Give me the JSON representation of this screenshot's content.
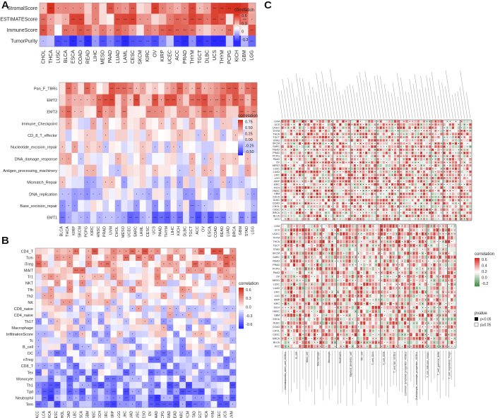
{
  "panel_labels": [
    "A",
    "B",
    "C"
  ],
  "colors": {
    "positive": "#d7301f",
    "neutral": "#ffffff",
    "negative": "#2b2bff",
    "c_positive": "#d73027",
    "c_negative": "#4a8f4a",
    "sig_fill": "#111111",
    "nonsig_fill": "#ffffff"
  },
  "chart_data": [
    {
      "id": "A-top",
      "type": "heatmap",
      "title": "",
      "rows": [
        "StromalScore",
        "ESTIMATEScore",
        "ImmuneScore",
        "TumorPurity"
      ],
      "columns": [
        "CHOL",
        "THCA",
        "LUSC",
        "BLCA",
        "ESCA",
        "COAD",
        "READ",
        "LIHC",
        "MESO",
        "PAAD",
        "LUAD",
        "LAML",
        "CESC",
        "SKCM",
        "KIRC",
        "OV",
        "KIRP",
        "UCEC",
        "ACC",
        "PRAD",
        "THYM",
        "TGCT",
        "DLBC",
        "UCS",
        "THYM",
        "PCPG",
        "KICH",
        "GBM",
        "LGG"
      ],
      "legend": {
        "title": "correlation",
        "ticks": [
          "0.6",
          "0.3",
          "0",
          "-0.3"
        ]
      },
      "row_means": [
        0.35,
        0.3,
        0.25,
        -0.4
      ]
    },
    {
      "id": "A-bottom",
      "type": "heatmap",
      "title": "",
      "rows": [
        "Pan_F_TBRs",
        "EMT2",
        "EMT3",
        "Immune_Checkpoint",
        "CD_8_T_effector",
        "Nucleotide_excision_repair",
        "DNA_damage_response",
        "Antigen_processing_machinery",
        "Mismatch_Repair",
        "DNA_replication",
        "Base_excision_repair",
        "EMT1"
      ],
      "columns": [
        "BLCA",
        "THCA",
        "KIRP",
        "SKCM",
        "PCPG",
        "KIRC",
        "HNSC",
        "PRAD",
        "UVM",
        "CHOL",
        "MESO",
        "UCEC",
        "SARC",
        "LAML",
        "CESC",
        "UCS",
        "PAAD",
        "THYM",
        "LIHC",
        "KICH",
        "DLBC",
        "TGCT",
        "ACC",
        "OV",
        "ESCA",
        "COAD",
        "READ",
        "LUAD",
        "BRCA",
        "GBM",
        "STAD",
        "LGG"
      ],
      "legend": {
        "title": "correlation",
        "ticks": [
          "0.75",
          "0.50",
          "0.25",
          "0.00",
          "-0.25",
          "-0.50"
        ]
      },
      "row_means": [
        0.3,
        0.35,
        0.3,
        0.1,
        0.05,
        0.05,
        0.05,
        0.05,
        -0.05,
        -0.1,
        -0.15,
        -0.35
      ]
    },
    {
      "id": "B",
      "type": "heatmap",
      "title": "",
      "rows": [
        "CD4_T",
        "Tcm",
        "iTreg",
        "MAIT",
        "Tr1",
        "NKT",
        "Tfh",
        "Th2",
        "NK",
        "CD8_naive",
        "CD4_naive",
        "Th17",
        "Macrophage",
        "InfiltrationScore",
        "Tc",
        "B_cell",
        "DC",
        "nTreg",
        "CD8_T",
        "Tex",
        "Monocyte",
        "Th1",
        "Tgd",
        "Neutrophil",
        "Tem"
      ],
      "columns": [
        "ACC",
        "BLCA",
        "BRCA",
        "CESC",
        "CHOL",
        "COAD",
        "DLBC",
        "ESCA",
        "GBM",
        "HNSC",
        "KICH",
        "KIRC",
        "KIRP",
        "LGG",
        "LIHC",
        "LUAD",
        "LUSC",
        "MESO",
        "OV",
        "PAAD",
        "PCPG",
        "PRAD",
        "READ",
        "SARC",
        "SKCM",
        "STAD",
        "TGCT",
        "THCA",
        "THYM",
        "UCEC",
        "UCS",
        "UVM"
      ],
      "legend": {
        "title": "correlation",
        "ticks": [
          "0.6",
          "0.3",
          "0.0",
          "-0.3",
          "-0.6"
        ]
      },
      "row_means": [
        0.25,
        0.2,
        0.2,
        0.15,
        0.1,
        0.1,
        0.1,
        0.05,
        0.05,
        0.0,
        0.0,
        -0.05,
        -0.05,
        -0.05,
        -0.1,
        -0.1,
        -0.15,
        -0.15,
        -0.2,
        -0.2,
        -0.2,
        -0.25,
        -0.25,
        -0.3,
        -0.3
      ]
    },
    {
      "id": "C",
      "type": "heatmap",
      "title": "",
      "rows": [
        "UVM",
        "UCS",
        "UCEC",
        "THYM",
        "THCA",
        "TGCT",
        "STAD",
        "SKCM",
        "SARC",
        "READ",
        "PRAD",
        "PCPG",
        "PAAD",
        "OV",
        "MESO",
        "LUSC",
        "LUAD",
        "LIHC",
        "LGG",
        "KIRP",
        "KIRC",
        "KICH",
        "HNSC",
        "GBM",
        "ESCA",
        "DLBC",
        "COAD",
        "CHOL",
        "CESC",
        "BRCA",
        "BLCA",
        "ACC"
      ],
      "legend": {
        "title": "correlation",
        "ticks": [
          "0.6",
          "0.4",
          "0.2",
          "0.0",
          "-0.2"
        ]
      },
      "pvalue_legend": {
        "title": "pvalue",
        "items": [
          "p<0.05",
          "p≥0.05"
        ]
      },
      "bottom_group_labels": [
        "Hematopoietic_stem_cell_XCELL",
        "B_cell",
        "Mast_cell",
        "Macrophage",
        "Monocyte",
        "Neutrophil",
        "Myeloid_dendritic_cell",
        "NK_cell",
        "T_cell_CD4",
        "T_cell_CD8",
        "T_cell_NK_XCELL",
        "Common_lymphoid_progenitor_XCELL",
        "Granulocyte_monocyte_progenitor_XCELL",
        "T_cell_follicular_helper",
        "T_cell_gamma_delta",
        "T_cell_regulatory_Tregs"
      ]
    }
  ]
}
